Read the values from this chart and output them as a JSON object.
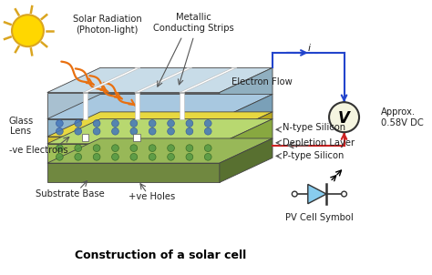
{
  "bg_color": "#ffffff",
  "title": "Construction of a solar cell",
  "title_fontsize": 9,
  "sun_color": "#FFD700",
  "sun_outline": "#DAA520",
  "ray_color": "#E87010",
  "glass_top": "#c8dce8",
  "glass_front": "#a8c0d0",
  "glass_side": "#90afc0",
  "n_top": "#a8c8e0",
  "n_front": "#90b5cc",
  "n_side": "#7aa0b8",
  "dep_top": "#e8d840",
  "dep_front": "#d0c030",
  "dep_side": "#b8a820",
  "p_top": "#b8d870",
  "p_front": "#a0c058",
  "p_side": "#88a840",
  "sub_top": "#98b858",
  "sub_front": "#708840",
  "sub_side": "#587030",
  "strip_color": "#ffffff",
  "dot_n_color": "#4477bb",
  "dot_p_color": "#559944",
  "circuit_blue": "#2244cc",
  "circuit_red": "#cc2222",
  "vm_face": "#f5f5e0",
  "vm_edge": "#333333",
  "diode_face": "#88ccee",
  "diode_edge": "#333333",
  "text_color": "#222222",
  "arrow_color": "#555555",
  "labels": {
    "solar": "Solar Radiation\n(Photon-light)",
    "glass": "Glass\nLens",
    "metallic": "Metallic\nConducting Strips",
    "electron_flow": "Electron Flow",
    "approx": "Approx.\n0.58V DC",
    "n_si": "N-type Silicon",
    "dep": "Depletion Layer",
    "p_si": "P-type Silicon",
    "neg_e": "-ve Electrons",
    "sub": "Substrate Base",
    "pos_h": "+ve Holes",
    "pv": "PV Cell Symbol",
    "i": "i"
  }
}
